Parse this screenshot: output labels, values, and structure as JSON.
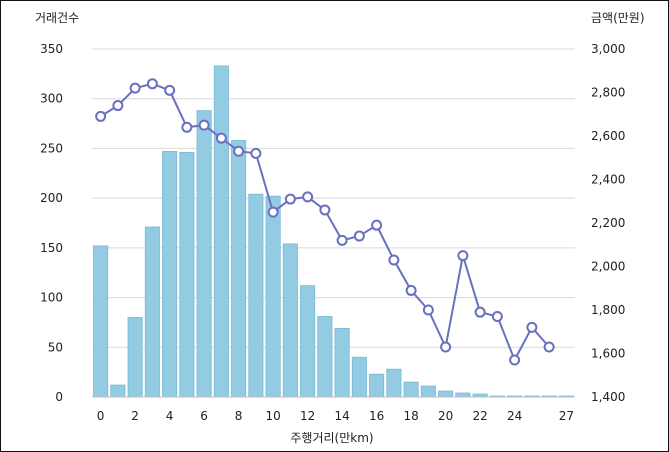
{
  "chart_data": {
    "type": "bar+line",
    "title": "",
    "xlabel": "주행거리(만km)",
    "y_left_label": "거래건수",
    "y_right_label": "금액(만원)",
    "x": [
      0,
      1,
      2,
      3,
      4,
      5,
      6,
      7,
      8,
      9,
      10,
      11,
      12,
      13,
      14,
      15,
      16,
      17,
      18,
      19,
      20,
      21,
      22,
      23,
      24,
      25,
      26,
      27
    ],
    "x_tick_labels": [
      "0",
      "2",
      "4",
      "6",
      "8",
      "10",
      "12",
      "14",
      "16",
      "18",
      "20",
      "22",
      "24",
      "27"
    ],
    "x_tick_positions": [
      0,
      2,
      4,
      6,
      8,
      10,
      12,
      14,
      16,
      18,
      20,
      22,
      24,
      27
    ],
    "y_left_ticks": [
      "0",
      "50",
      "100",
      "150",
      "200",
      "250",
      "300",
      "350"
    ],
    "y_left_tick_values": [
      0,
      50,
      100,
      150,
      200,
      250,
      300,
      350
    ],
    "y_right_ticks": [
      "1,400",
      "1,600",
      "1,800",
      "2,000",
      "2,200",
      "2,400",
      "2,600",
      "2,800",
      "3,000"
    ],
    "y_right_tick_values": [
      1400,
      1600,
      1800,
      2000,
      2200,
      2400,
      2600,
      2800,
      3000
    ],
    "ylim_left": [
      0,
      350
    ],
    "ylim_right": [
      1400,
      3000
    ],
    "grid": true,
    "series": [
      {
        "axis": "left",
        "type": "bar",
        "color": "#93cbe3",
        "stroke": "#79b9d6",
        "values": [
          152,
          12,
          80,
          171,
          247,
          246,
          288,
          333,
          258,
          204,
          202,
          154,
          112,
          81,
          69,
          40,
          23,
          28,
          15,
          11,
          6,
          4,
          3,
          1,
          1,
          1,
          1,
          1
        ]
      },
      {
        "axis": "right",
        "type": "line",
        "color": "#6870c0",
        "values": [
          2690,
          2740,
          2820,
          2840,
          2810,
          2640,
          2650,
          2590,
          2530,
          2520,
          2250,
          2310,
          2320,
          2260,
          2120,
          2140,
          2190,
          2030,
          1890,
          1800,
          1630,
          2050,
          1790,
          1770,
          1570,
          1720,
          1630,
          null
        ]
      }
    ]
  }
}
